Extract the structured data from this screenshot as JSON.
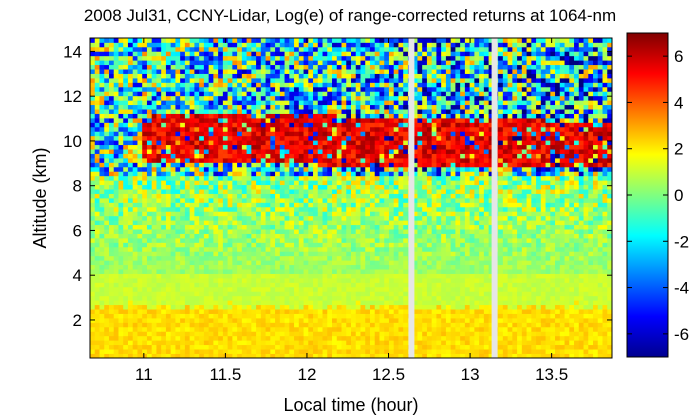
{
  "chart_data": {
    "type": "heatmap",
    "title": "2008 Jul31, CCNY-Lidar, Log(e) of range-corrected returns at 1064-nm",
    "xlabel": "Local time (hour)",
    "ylabel": "Altitude (km)",
    "xlim": [
      10.67,
      13.87
    ],
    "ylim": [
      0.3,
      14.6
    ],
    "x_ticks": [
      11,
      11.5,
      12,
      12.5,
      13,
      13.5
    ],
    "x_tick_labels": [
      "11",
      "11.5",
      "12",
      "12.5",
      "13",
      "13.5"
    ],
    "y_ticks": [
      2,
      4,
      6,
      8,
      10,
      12,
      14
    ],
    "y_tick_labels": [
      "2",
      "4",
      "6",
      "8",
      "10",
      "12",
      "14"
    ],
    "colorbar": {
      "range": [
        -7,
        7
      ],
      "ticks": [
        6,
        4,
        2,
        0,
        -2,
        -4,
        -6
      ],
      "tick_labels": [
        "6",
        "4",
        "2",
        "0",
        "-2",
        "-4",
        "-6"
      ],
      "colormap": "jet"
    },
    "data_gaps_hour": [
      12.64,
      13.15
    ],
    "layers": [
      {
        "feature": "cirrus cloud",
        "time_start": 11.0,
        "time_end": 13.87,
        "base_km": 8.8,
        "top_km": 11.6,
        "value": 5.5
      },
      {
        "feature": "boundary layer",
        "time_start": 10.67,
        "time_end": 13.87,
        "base_km": 0.3,
        "top_km": 2.6,
        "value": 2.2
      },
      {
        "feature": "free troposphere",
        "time_start": 10.67,
        "time_end": 13.87,
        "base_km": 2.6,
        "top_km": 8.5,
        "value": 0.5
      },
      {
        "feature": "noise above cloud",
        "time_start": 10.67,
        "time_end": 13.87,
        "base_km": 11.6,
        "top_km": 14.6,
        "value": -1.0
      }
    ]
  }
}
